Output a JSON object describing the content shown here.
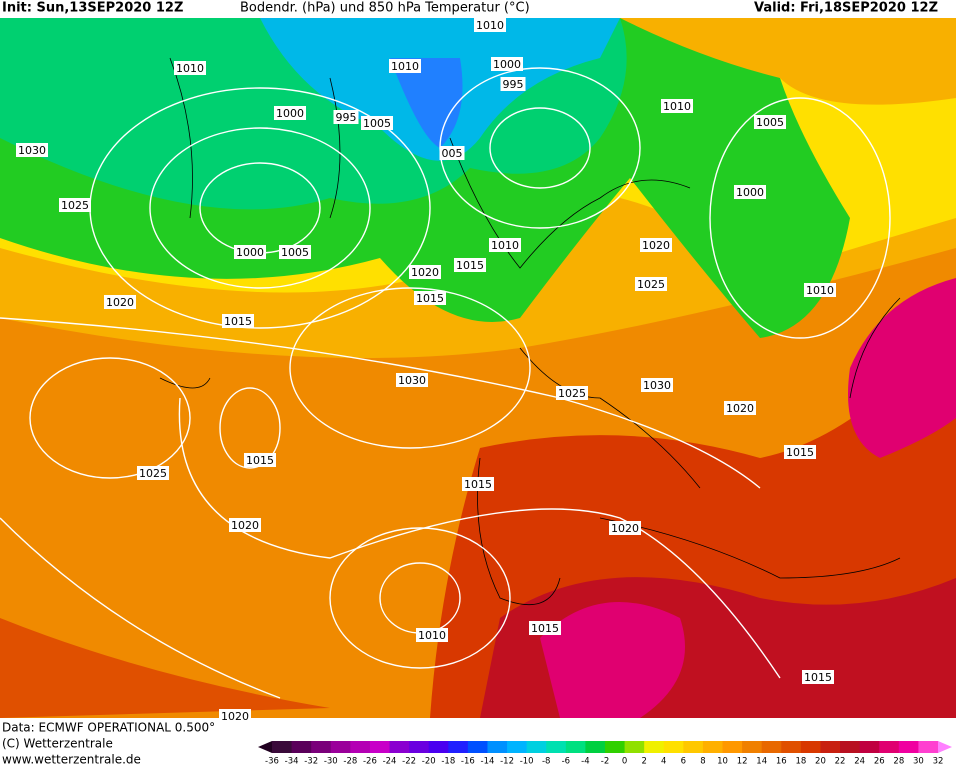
{
  "header": {
    "init": "Init: Sun,13SEP2020 12Z",
    "title": "Bodendr. (hPa) und 850 hPa Temperatur (°C)",
    "valid": "Valid: Fri,18SEP2020 12Z"
  },
  "footer": {
    "data": "Data: ECMWF OPERATIONAL 0.500°",
    "copyright": "(C) Wetterzentrale",
    "url": "www.wetterzentrale.de"
  },
  "colorbar": {
    "labels": [
      -36,
      -34,
      -32,
      -30,
      -28,
      -26,
      -24,
      -22,
      -20,
      -18,
      -16,
      -14,
      -12,
      -10,
      -8,
      -6,
      -4,
      -2,
      0,
      2,
      4,
      6,
      8,
      10,
      12,
      14,
      16,
      18,
      20,
      22,
      24,
      26,
      28,
      30,
      32
    ],
    "colors": [
      "#3a0a3a",
      "#5a005a",
      "#7a007a",
      "#9a009a",
      "#b400b4",
      "#c800c8",
      "#8a00d0",
      "#6a00e0",
      "#4a00f0",
      "#2020ff",
      "#0050ff",
      "#0090ff",
      "#00b4ff",
      "#00d0e0",
      "#00e0b0",
      "#00e080",
      "#00d040",
      "#30d000",
      "#90e000",
      "#f0f000",
      "#ffe000",
      "#ffc800",
      "#ffb000",
      "#ff9800",
      "#f08000",
      "#e86800",
      "#e05000",
      "#d83800",
      "#c82010",
      "#b81020",
      "#c00040",
      "#e00070",
      "#f000a0",
      "#ff40d0"
    ]
  },
  "isobar_labels": [
    "1010",
    "1030",
    "1025",
    "1000",
    "995",
    "1005",
    "1010",
    "1010",
    "1000",
    "995",
    "005",
    "1000",
    "1005",
    "1010",
    "1020",
    "1015",
    "1015",
    "1020",
    "1015",
    "1030",
    "1025",
    "1030",
    "1020",
    "1010",
    "1005",
    "1000",
    "1020",
    "1025",
    "1010",
    "1015",
    "1025",
    "1015",
    "1020",
    "1015",
    "1020",
    "1010",
    "1015",
    "1015",
    "1020"
  ]
}
